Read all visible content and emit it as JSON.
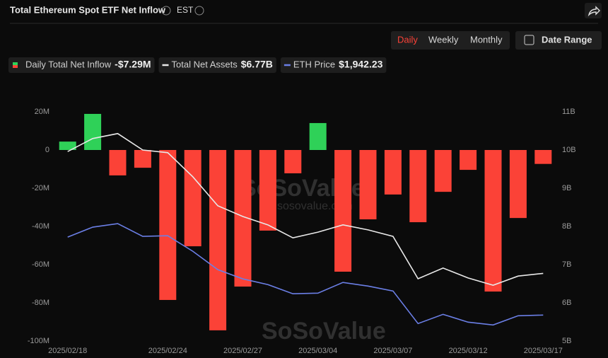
{
  "header": {
    "title": "Total Ethereum Spot ETF Net Inflow",
    "timezone": "EST",
    "tabs": [
      "Daily",
      "Weekly",
      "Monthly"
    ],
    "active_tab": "Daily",
    "date_range": "Date Range"
  },
  "watermark": {
    "brand": "SoSoValue",
    "site": "sosovalue.com"
  },
  "chart_data": {
    "type": "bar",
    "categories": [
      "2025/02/18",
      null,
      null,
      null,
      "2025/02/24",
      null,
      null,
      "2025/02/27",
      null,
      null,
      "2025/03/04",
      null,
      null,
      "2025/03/07",
      null,
      null,
      "2025/03/12",
      null,
      null,
      "2025/03/17"
    ],
    "series": [
      {
        "name": "Daily Total Net Inflow",
        "type": "bar",
        "positive_color": "#2fd158",
        "negative_color": "#fb4237",
        "legend_value": "-$7.29M",
        "values": [
          4.4,
          18.9,
          -13.3,
          -9.3,
          -78.5,
          -50.4,
          -94.4,
          -71.5,
          -42.2,
          -12.2,
          14.1,
          -63.7,
          -36.3,
          -23.3,
          -37.8,
          -21.9,
          -10.4,
          -74.1,
          -35.6,
          -7.29
        ]
      },
      {
        "name": "Total Net Assets",
        "type": "line",
        "axis": "y2",
        "color": "#e8e8e8",
        "legend_value": "$6.77B",
        "values": [
          9.96,
          10.3,
          10.43,
          10.0,
          9.93,
          9.3,
          8.54,
          8.26,
          8.04,
          7.7,
          7.85,
          8.04,
          7.91,
          7.74,
          6.63,
          6.91,
          6.65,
          6.46,
          6.7,
          6.77
        ]
      },
      {
        "name": "ETH Price",
        "type": "line",
        "axis": "y3",
        "color": "#6b7fe6",
        "legend_value": "$1,942.23",
        "values": [
          2670,
          2763,
          2796,
          2677,
          2683,
          2538,
          2366,
          2280,
          2227,
          2141,
          2147,
          2247,
          2213,
          2167,
          1863,
          1949,
          1876,
          1850,
          1936,
          1942.23
        ]
      }
    ],
    "ylim": [
      -100,
      20
    ],
    "yticks": [
      {
        "value": 20,
        "label": "20M"
      },
      0,
      {
        "value": -20,
        "label": "-20M"
      },
      {
        "value": -40,
        "label": "-40M"
      },
      {
        "value": -60,
        "label": "-60M"
      },
      {
        "value": -80,
        "label": "-80M"
      },
      {
        "value": -100,
        "label": "-100M"
      }
    ],
    "y2lim": [
      5,
      11
    ],
    "y2ticks": [
      {
        "value": 11,
        "label": "11B"
      },
      {
        "value": 10,
        "label": "10B"
      },
      {
        "value": 9,
        "label": "9B"
      },
      {
        "value": 8,
        "label": "8B"
      },
      {
        "value": 7,
        "label": "7B"
      },
      {
        "value": 6,
        "label": "6B"
      },
      {
        "value": 5,
        "label": "5B"
      }
    ],
    "y3lim": [
      1700,
      3840
    ]
  }
}
